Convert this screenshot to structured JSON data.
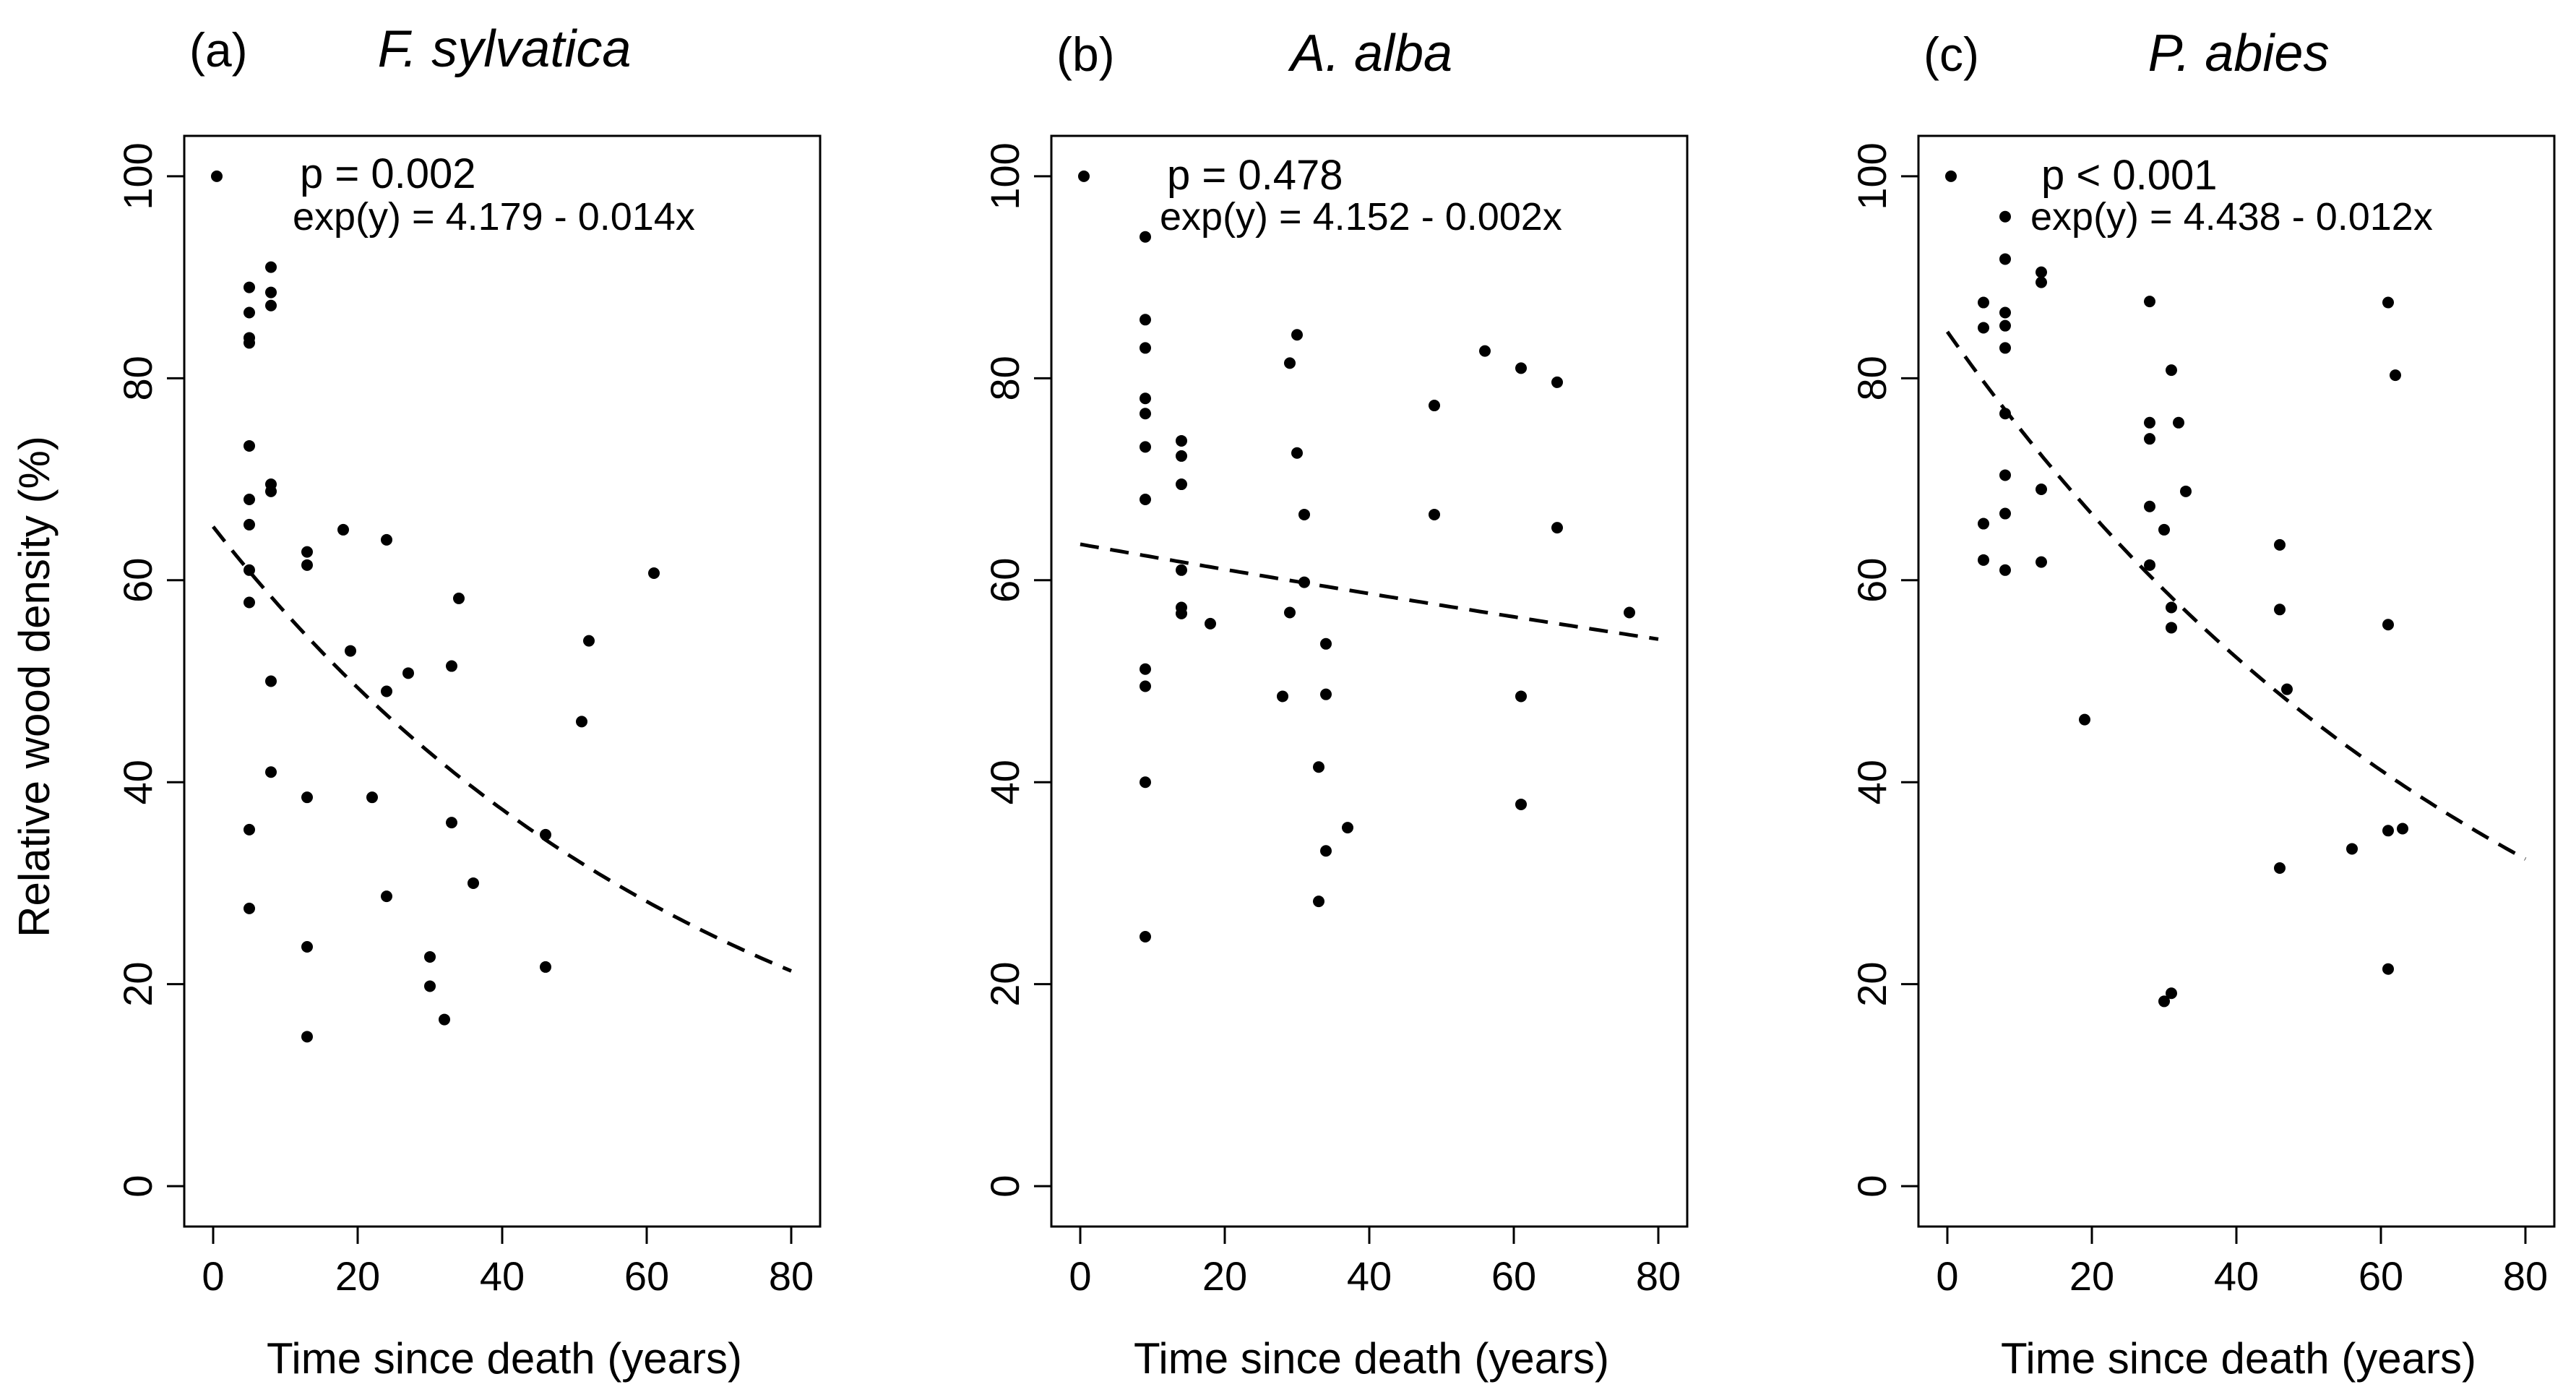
{
  "figure": {
    "ylabel": "Relative wood density (%)",
    "xlabel": "Time since death (years)"
  },
  "style": {
    "point_color": "#000000",
    "line_color": "#000000",
    "background": "#ffffff"
  },
  "chart_data": [
    {
      "type": "scatter",
      "panel": "(a)",
      "title": "F. sylvatica",
      "xlabel": "Time since death (years)",
      "ylabel": "Relative wood density (%)",
      "xlim": [
        -4,
        84
      ],
      "ylim": [
        -4,
        104
      ],
      "xticks": [
        0,
        20,
        40,
        60,
        80
      ],
      "yticks": [
        0,
        20,
        40,
        60,
        80,
        100
      ],
      "annotation": {
        "p": "p = 0.002",
        "equation": "exp(y) = 4.179 - 0.014x"
      },
      "fit": {
        "type": "exp",
        "intercept": 4.179,
        "slope": -0.014,
        "style": "dashed",
        "x_range": [
          0,
          80
        ]
      },
      "points": [
        [
          0.5,
          100
        ],
        [
          5,
          89
        ],
        [
          5,
          86.5
        ],
        [
          5,
          84
        ],
        [
          5,
          83.5
        ],
        [
          8,
          91
        ],
        [
          8,
          88.5
        ],
        [
          8,
          87.2
        ],
        [
          5,
          73.3
        ],
        [
          8,
          69.5
        ],
        [
          8,
          68.8
        ],
        [
          5,
          68
        ],
        [
          5,
          65.5
        ],
        [
          5,
          61
        ],
        [
          5,
          57.8
        ],
        [
          8,
          50
        ],
        [
          8,
          41
        ],
        [
          5,
          35.3
        ],
        [
          5,
          27.5
        ],
        [
          13,
          62.8
        ],
        [
          13,
          61.5
        ],
        [
          13,
          38.5
        ],
        [
          13,
          23.7
        ],
        [
          13,
          14.8
        ],
        [
          18,
          65
        ],
        [
          19,
          53
        ],
        [
          22,
          38.5
        ],
        [
          24,
          64
        ],
        [
          24,
          49
        ],
        [
          24,
          28.7
        ],
        [
          27,
          50.8
        ],
        [
          30,
          22.7
        ],
        [
          30,
          19.8
        ],
        [
          32,
          16.5
        ],
        [
          33,
          51.5
        ],
        [
          33,
          36
        ],
        [
          34,
          58.2
        ],
        [
          36,
          30
        ],
        [
          46,
          34.8
        ],
        [
          46,
          21.7
        ],
        [
          51,
          46
        ],
        [
          52,
          54
        ],
        [
          61,
          60.7
        ]
      ]
    },
    {
      "type": "scatter",
      "panel": "(b)",
      "title": "A. alba",
      "xlabel": "Time since death (years)",
      "ylabel": "",
      "xlim": [
        -4,
        84
      ],
      "ylim": [
        -4,
        104
      ],
      "xticks": [
        0,
        20,
        40,
        60,
        80
      ],
      "yticks": [
        0,
        20,
        40,
        60,
        80,
        100
      ],
      "annotation": {
        "p": "p = 0.478",
        "equation": "exp(y) = 4.152 - 0.002x"
      },
      "fit": {
        "type": "exp",
        "intercept": 4.152,
        "slope": -0.002,
        "style": "dashed",
        "x_range": [
          0,
          80
        ]
      },
      "points": [
        [
          0.5,
          100
        ],
        [
          9,
          94
        ],
        [
          9,
          85.8
        ],
        [
          9,
          83
        ],
        [
          9,
          78
        ],
        [
          9,
          76.5
        ],
        [
          9,
          73.2
        ],
        [
          9,
          68
        ],
        [
          9,
          51.2
        ],
        [
          9,
          49.5
        ],
        [
          9,
          40
        ],
        [
          9,
          24.7
        ],
        [
          14,
          73.8
        ],
        [
          14,
          72.3
        ],
        [
          14,
          69.5
        ],
        [
          14,
          61
        ],
        [
          14,
          57.3
        ],
        [
          14,
          56.7
        ],
        [
          18,
          55.7
        ],
        [
          28,
          48.5
        ],
        [
          29,
          81.5
        ],
        [
          29,
          56.8
        ],
        [
          30,
          84.3
        ],
        [
          30,
          72.6
        ],
        [
          31,
          66.5
        ],
        [
          31,
          59.8
        ],
        [
          33,
          41.5
        ],
        [
          33,
          28.2
        ],
        [
          34,
          53.7
        ],
        [
          34,
          48.7
        ],
        [
          34,
          33.2
        ],
        [
          37,
          35.5
        ],
        [
          49,
          77.3
        ],
        [
          49,
          66.5
        ],
        [
          56,
          82.7
        ],
        [
          61,
          81
        ],
        [
          61,
          48.5
        ],
        [
          61,
          37.8
        ],
        [
          66,
          79.6
        ],
        [
          66,
          65.2
        ],
        [
          76,
          56.8
        ]
      ]
    },
    {
      "type": "scatter",
      "panel": "(c)",
      "title": "P. abies",
      "xlabel": "Time since death (years)",
      "ylabel": "",
      "xlim": [
        -4,
        84
      ],
      "ylim": [
        -4,
        104
      ],
      "xticks": [
        0,
        20,
        40,
        60,
        80
      ],
      "yticks": [
        0,
        20,
        40,
        60,
        80,
        100
      ],
      "annotation": {
        "p": "p  < 0.001",
        "equation": "exp(y) = 4.438 - 0.012x"
      },
      "fit": {
        "type": "exp",
        "intercept": 4.438,
        "slope": -0.012,
        "style": "dashed",
        "x_range": [
          0,
          80
        ]
      },
      "points": [
        [
          0.5,
          100
        ],
        [
          8,
          96
        ],
        [
          8,
          91.8
        ],
        [
          5,
          87.5
        ],
        [
          5,
          85
        ],
        [
          8,
          86.5
        ],
        [
          8,
          85.2
        ],
        [
          8,
          83
        ],
        [
          8,
          76.5
        ],
        [
          8,
          70.4
        ],
        [
          8,
          66.6
        ],
        [
          5,
          65.6
        ],
        [
          5,
          62
        ],
        [
          8,
          61
        ],
        [
          13,
          90.5
        ],
        [
          13,
          89.5
        ],
        [
          13,
          69
        ],
        [
          13,
          61.8
        ],
        [
          19,
          46.2
        ],
        [
          28,
          87.6
        ],
        [
          28,
          75.6
        ],
        [
          28,
          74
        ],
        [
          28,
          67.3
        ],
        [
          28,
          61.5
        ],
        [
          30,
          65
        ],
        [
          31,
          80.8
        ],
        [
          31,
          57.3
        ],
        [
          31,
          55.3
        ],
        [
          32,
          75.6
        ],
        [
          33,
          68.8
        ],
        [
          30,
          18.3
        ],
        [
          31,
          19.1
        ],
        [
          46,
          63.5
        ],
        [
          46,
          57.1
        ],
        [
          47,
          49.2
        ],
        [
          46,
          31.5
        ],
        [
          56,
          33.4
        ],
        [
          61,
          87.5
        ],
        [
          62,
          80.3
        ],
        [
          61,
          55.6
        ],
        [
          61,
          35.2
        ],
        [
          63,
          35.4
        ],
        [
          61,
          21.5
        ]
      ]
    }
  ]
}
